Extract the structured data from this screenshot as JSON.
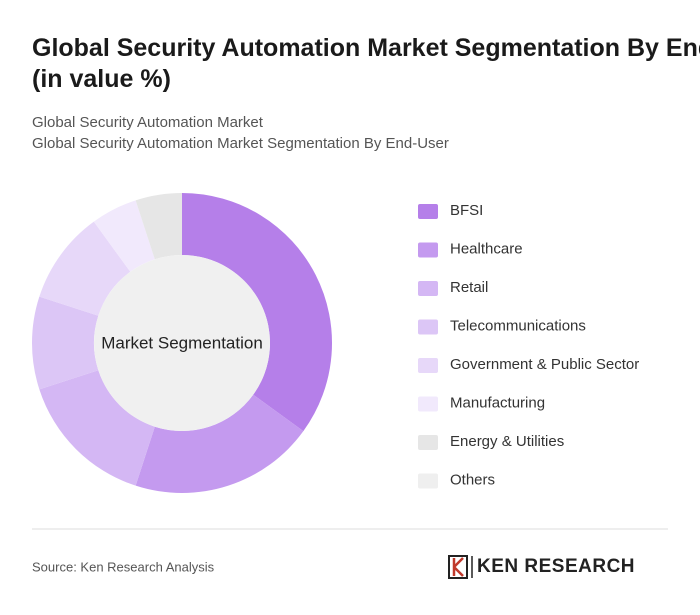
{
  "chart_data": {
    "type": "donut",
    "title": "Global Security Automation Market Segmentation By End-User (in value %)",
    "subtitle": [
      "Global Security Automation Market",
      "Global Security Automation Market Segmentation By End-User"
    ],
    "center_label": "Market Segmentation",
    "categories": [
      "BFSI",
      "Healthcare",
      "Retail",
      "Telecommunications",
      "Government & Public Sector",
      "Manufacturing",
      "Energy & Utilities",
      "Others"
    ],
    "values": [
      35,
      20,
      15,
      10,
      10,
      5,
      5,
      0
    ],
    "colors": [
      "#b57fe9",
      "#c49aef",
      "#d4b7f4",
      "#dcc6f6",
      "#e7d8f9",
      "#f1e9fc",
      "#e6e6e6",
      "#efefef"
    ],
    "legend": "right",
    "source": "Source: Ken Research Analysis",
    "logo": "KEN RESEARCH"
  }
}
